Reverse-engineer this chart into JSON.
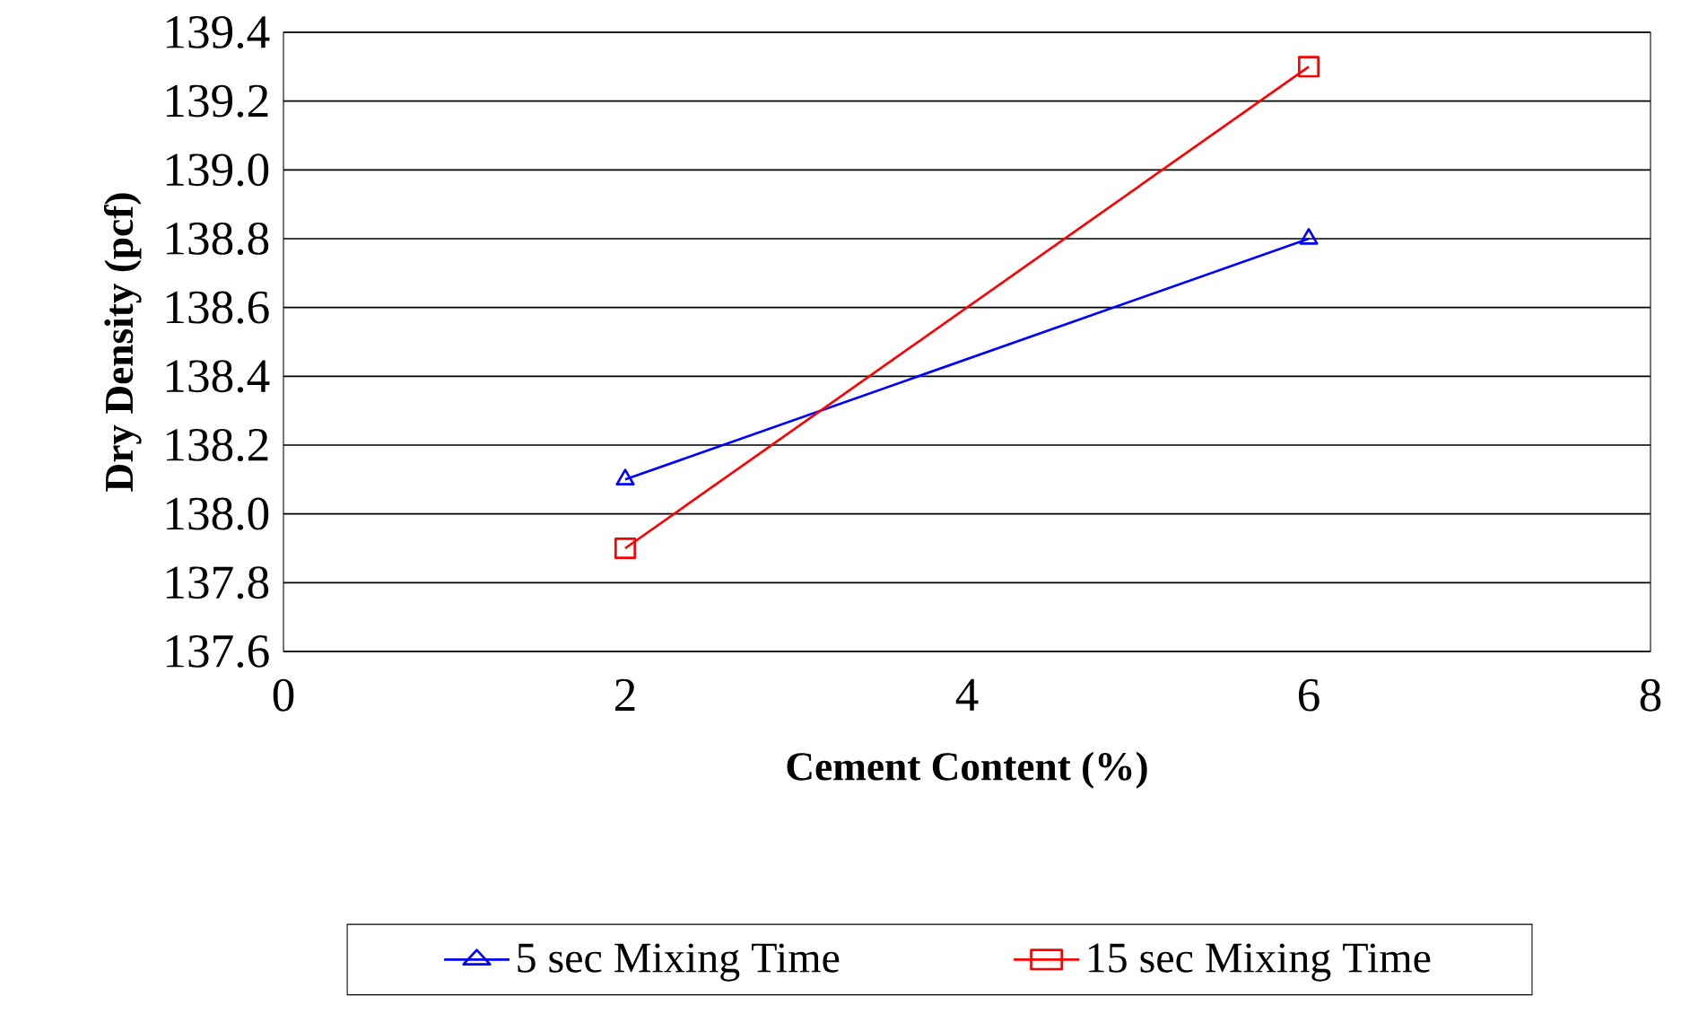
{
  "chart_data": {
    "type": "line",
    "xlabel": "Cement Content (%)",
    "ylabel": "Dry Density (pcf)",
    "x": [
      2,
      6
    ],
    "series": [
      {
        "name": "5 sec Mixing Time",
        "color": "#0000ff",
        "values": [
          138.1,
          138.8
        ],
        "marker": "triangle"
      },
      {
        "name": "15 sec Mixing Time",
        "color": "#ff0000",
        "values": [
          137.9,
          139.3
        ],
        "marker": "square"
      }
    ],
    "xlim": [
      0,
      8
    ],
    "xticks": [
      0,
      2,
      4,
      6,
      8
    ],
    "ylim": [
      137.6,
      139.4
    ],
    "yticks": [
      {
        "value": 137.6,
        "label": "137.6"
      },
      {
        "value": 137.8,
        "label": "137.8"
      },
      {
        "value": 138.0,
        "label": "138.0"
      },
      {
        "value": 138.2,
        "label": "138.2"
      },
      {
        "value": 138.4,
        "label": "138.4"
      },
      {
        "value": 138.6,
        "label": "138.6"
      },
      {
        "value": 138.8,
        "label": "138.8"
      },
      {
        "value": 139.0,
        "label": "139.0"
      },
      {
        "value": 139.2,
        "label": "139.2"
      },
      {
        "value": 139.4,
        "label": "139.4"
      }
    ],
    "grid": "y",
    "legend": "bottom",
    "line_style": "solid"
  }
}
